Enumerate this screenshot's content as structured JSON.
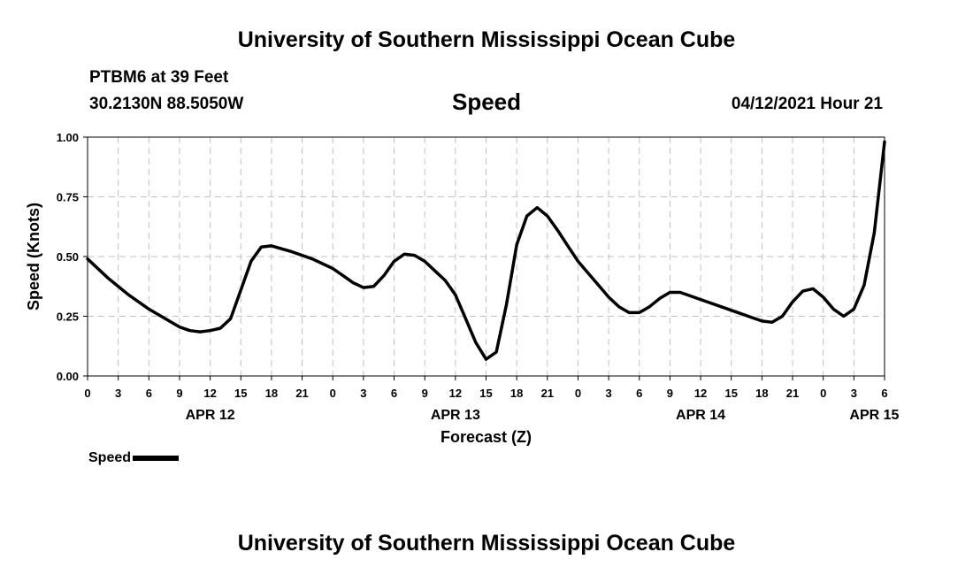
{
  "header": {
    "title": "University of Southern Mississippi Ocean Cube",
    "station": "PTBM6 at 39 Feet",
    "coordinates": "30.2130N  88.5050W",
    "metric": "Speed",
    "datetime": "04/12/2021 Hour 21"
  },
  "footer": {
    "title": "University of Southern Mississippi Ocean Cube"
  },
  "legend": {
    "label": "Speed"
  },
  "chart_data": {
    "type": "line",
    "title": "Speed",
    "xlabel": "Forecast (Z)",
    "ylabel": "Speed (Knots)",
    "x_unit": "hours from APR 12 00Z",
    "xlim": [
      0,
      78
    ],
    "ylim": [
      0,
      1
    ],
    "grid": true,
    "y_ticks": [
      0,
      0.25,
      0.5,
      0.75,
      1.0
    ],
    "y_tick_labels": [
      "0.00",
      "0.25",
      "0.50",
      "0.75",
      "1.00"
    ],
    "x_ticks": [
      0,
      3,
      6,
      9,
      12,
      15,
      18,
      21,
      24,
      27,
      30,
      33,
      36,
      39,
      42,
      45,
      48,
      51,
      54,
      57,
      60,
      63,
      66,
      69,
      72,
      75,
      78
    ],
    "x_tick_labels": [
      "0",
      "3",
      "6",
      "9",
      "12",
      "15",
      "18",
      "21",
      "0",
      "3",
      "6",
      "9",
      "12",
      "15",
      "18",
      "21",
      "0",
      "3",
      "6",
      "9",
      "12",
      "15",
      "18",
      "21",
      "0",
      "3",
      "6"
    ],
    "date_labels": [
      {
        "x": 12,
        "label": "APR 12"
      },
      {
        "x": 36,
        "label": "APR 13"
      },
      {
        "x": 60,
        "label": "APR 14"
      },
      {
        "x": 77,
        "label": "APR 15"
      }
    ],
    "series": [
      {
        "name": "Speed",
        "color": "#000000",
        "x": [
          0,
          2,
          4,
          6,
          8,
          9,
          10,
          11,
          12,
          13,
          14,
          15,
          16,
          17,
          18,
          20,
          22,
          24,
          25,
          26,
          27,
          28,
          29,
          30,
          31,
          32,
          33,
          34,
          35,
          36,
          37,
          38,
          39,
          40,
          41,
          42,
          43,
          44,
          45,
          46,
          47,
          48,
          49,
          50,
          51,
          52,
          53,
          54,
          55,
          56,
          57,
          58,
          60,
          62,
          64,
          65,
          66,
          67,
          68,
          69,
          70,
          71,
          72,
          73,
          74,
          75,
          76,
          77,
          78
        ],
        "y": [
          0.49,
          0.41,
          0.34,
          0.28,
          0.23,
          0.205,
          0.19,
          0.185,
          0.19,
          0.2,
          0.24,
          0.36,
          0.48,
          0.54,
          0.545,
          0.52,
          0.49,
          0.45,
          0.42,
          0.39,
          0.37,
          0.375,
          0.42,
          0.48,
          0.51,
          0.505,
          0.48,
          0.44,
          0.4,
          0.34,
          0.24,
          0.14,
          0.07,
          0.1,
          0.3,
          0.55,
          0.67,
          0.705,
          0.67,
          0.61,
          0.545,
          0.48,
          0.43,
          0.38,
          0.33,
          0.29,
          0.265,
          0.265,
          0.29,
          0.325,
          0.35,
          0.35,
          0.32,
          0.29,
          0.26,
          0.245,
          0.23,
          0.225,
          0.25,
          0.31,
          0.355,
          0.365,
          0.33,
          0.28,
          0.25,
          0.28,
          0.38,
          0.6,
          0.98
        ]
      }
    ]
  }
}
